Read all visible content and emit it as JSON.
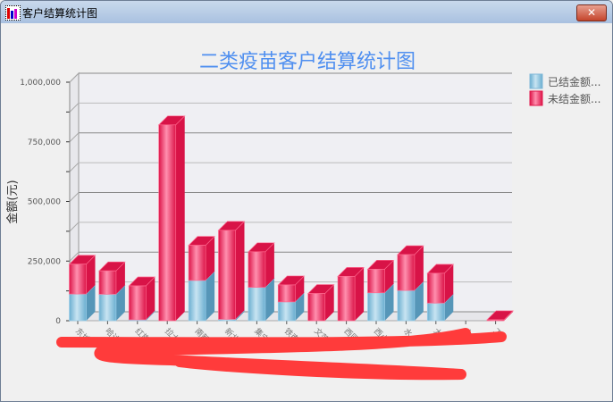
{
  "window": {
    "title": "客户结算统计图",
    "close_label": "✕"
  },
  "chart_data": {
    "type": "bar",
    "stacked": true,
    "style": "3d",
    "title": "二类疫苗客户结算统计图",
    "ylabel": "金额(元)",
    "xlabel": "",
    "ylim": [
      0,
      1000000
    ],
    "yticks": [
      "0",
      "250,000",
      "500,000",
      "750,000",
      "1,000,000"
    ],
    "grid": true,
    "legend_position": "top-right",
    "categories": [
      "东城",
      "哈达",
      "红旗",
      "拉大",
      "南新",
      "新北",
      "集宁",
      "铁南",
      "文萍",
      "西园",
      "西小",
      "水",
      "大",
      "大",
      "工"
    ],
    "series": [
      {
        "name": "已结金额...",
        "color": "#7fb8d8",
        "values": [
          112000,
          111000,
          4000,
          0,
          169000,
          6000,
          140000,
          79000,
          0,
          0,
          117000,
          127000,
          74000,
          0,
          0
        ]
      },
      {
        "name": "未结金额...",
        "color": "#e0164a",
        "values": [
          125000,
          98000,
          142000,
          821000,
          147000,
          373000,
          149000,
          71000,
          114000,
          186000,
          99000,
          150000,
          125000,
          0,
          4000
        ]
      }
    ]
  },
  "colors": {
    "title": "#4f8ff0",
    "paid": "#7fb8d8",
    "unpaid": "#e0164a",
    "redaction": "#ff3b3b"
  }
}
